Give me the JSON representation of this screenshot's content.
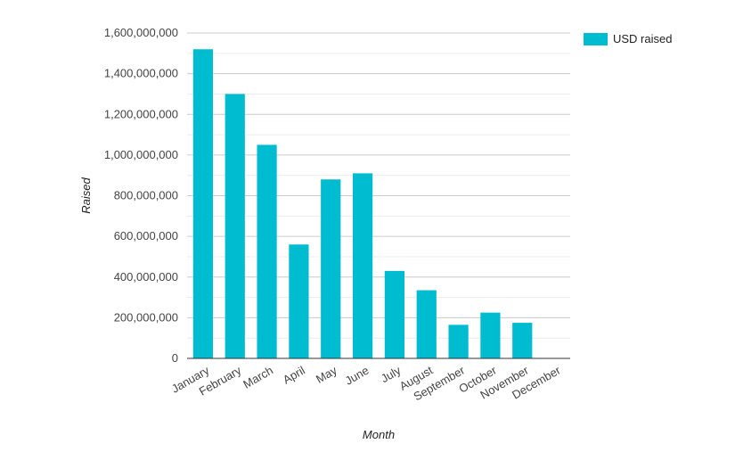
{
  "chart_data": {
    "type": "bar",
    "categories": [
      "January",
      "February",
      "March",
      "April",
      "May",
      "June",
      "July",
      "August",
      "September",
      "October",
      "November",
      "December"
    ],
    "series": [
      {
        "name": "USD raised",
        "color": "#00bcd0",
        "values": [
          1520000000,
          1300000000,
          1050000000,
          560000000,
          880000000,
          910000000,
          430000000,
          335000000,
          165000000,
          225000000,
          175000000,
          0
        ]
      }
    ],
    "xlabel": "Month",
    "ylabel": "Raised",
    "ylim": [
      0,
      1600000000
    ],
    "yticks": [
      0,
      200000000,
      400000000,
      600000000,
      800000000,
      1000000000,
      1200000000,
      1400000000,
      1600000000
    ],
    "ytick_labels": [
      "0",
      "200,000,000",
      "400,000,000",
      "600,000,000",
      "800,000,000",
      "1,000,000,000",
      "1,200,000,000",
      "1,400,000,000",
      "1,600,000,000"
    ],
    "grid": true,
    "legend_position": "top-right"
  }
}
